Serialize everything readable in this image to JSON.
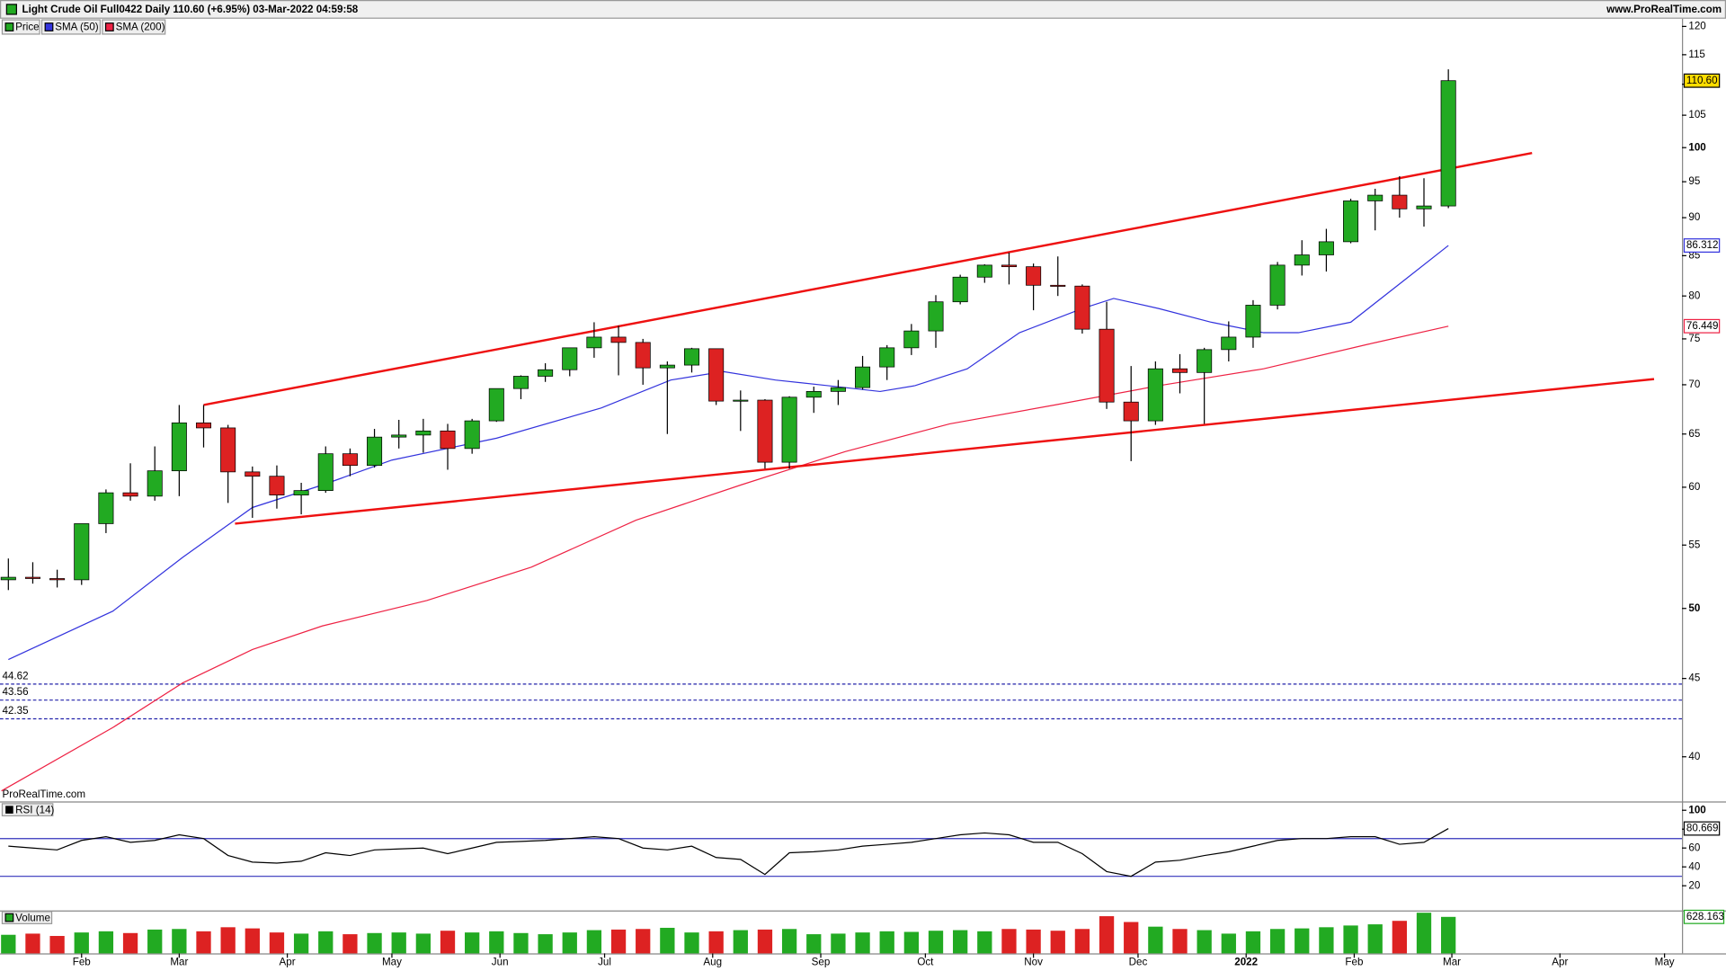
{
  "chart_data": [
    {
      "type": "candlestick",
      "title": "Light Crude Oil Full0422 Daily 110.60 (+6.95%) 03-Mar-2022 04:59:58",
      "source": "www.ProRealTime.com",
      "watermark": "ProRealTime.com",
      "price_name": "Price",
      "up_color": "#22aa22",
      "down_color": "#dd2222",
      "log_scale": true,
      "x": [
        10,
        17,
        24,
        31,
        38,
        45,
        52,
        59,
        66,
        73,
        80,
        87,
        94,
        101,
        108,
        115,
        122,
        129,
        136,
        143,
        150,
        157,
        164,
        171,
        178,
        185,
        192,
        199,
        206,
        213,
        220,
        227,
        234,
        241,
        248,
        255,
        262,
        269,
        276,
        283,
        290,
        297,
        304,
        311,
        318,
        325,
        332,
        339,
        346,
        353,
        360,
        367,
        374,
        381,
        388,
        395,
        402,
        409,
        416,
        423
      ],
      "open": [
        52.2,
        52.4,
        52.3,
        52.2,
        56.8,
        59.5,
        59.2,
        61.5,
        66.1,
        65.6,
        61.4,
        61.0,
        59.3,
        59.7,
        63.1,
        62.0,
        64.7,
        64.9,
        65.3,
        63.6,
        66.3,
        69.6,
        70.9,
        71.6,
        74.0,
        75.2,
        74.6,
        71.8,
        72.1,
        73.9,
        68.3,
        68.4,
        62.3,
        68.7,
        69.3,
        69.7,
        71.9,
        74.0,
        75.9,
        79.3,
        82.3,
        83.8,
        83.6,
        81.3,
        81.2,
        76.1,
        68.2,
        66.3,
        71.7,
        71.3,
        73.8,
        75.2,
        78.9,
        83.8,
        85.1,
        86.8,
        92.3,
        93.1,
        91.2,
        91.6
      ],
      "high": [
        53.9,
        53.6,
        53.0,
        56.8,
        59.8,
        62.2,
        63.8,
        67.9,
        67.9,
        65.9,
        61.9,
        62.0,
        60.4,
        63.8,
        63.6,
        65.5,
        66.4,
        66.5,
        66.0,
        66.5,
        69.6,
        71.0,
        72.3,
        74.0,
        76.9,
        76.5,
        75.0,
        72.5,
        74.0,
        73.9,
        69.4,
        68.5,
        68.8,
        69.8,
        70.5,
        73.1,
        74.3,
        76.7,
        80.1,
        82.6,
        83.9,
        85.4,
        84.0,
        84.9,
        81.4,
        79.3,
        72.0,
        72.5,
        73.3,
        74.0,
        77.0,
        79.5,
        84.2,
        87.0,
        88.5,
        92.6,
        94.0,
        95.8,
        95.5,
        112.5
      ],
      "low": [
        51.4,
        51.9,
        51.6,
        51.8,
        56.0,
        58.8,
        58.8,
        59.2,
        63.7,
        58.6,
        57.3,
        58.1,
        57.6,
        59.5,
        61.0,
        61.8,
        63.6,
        63.2,
        61.6,
        63.1,
        66.2,
        68.5,
        70.3,
        70.9,
        72.9,
        71.0,
        70.0,
        65.0,
        71.3,
        67.9,
        65.3,
        61.7,
        61.7,
        67.1,
        67.9,
        69.5,
        70.5,
        73.2,
        74.0,
        79.0,
        81.6,
        81.4,
        78.3,
        80.0,
        75.6,
        67.5,
        62.4,
        65.9,
        69.1,
        66.0,
        72.5,
        74.0,
        78.4,
        82.5,
        83.0,
        86.6,
        88.3,
        90.0,
        88.8,
        91.3
      ],
      "close": [
        52.4,
        52.3,
        52.2,
        56.8,
        59.5,
        59.2,
        61.5,
        66.1,
        65.6,
        61.4,
        61.0,
        59.3,
        59.7,
        63.1,
        62.0,
        64.7,
        64.9,
        65.3,
        63.6,
        66.3,
        69.6,
        70.9,
        71.6,
        74.0,
        75.2,
        74.6,
        71.8,
        72.1,
        73.9,
        68.3,
        68.4,
        62.3,
        68.7,
        69.3,
        69.7,
        71.9,
        74.0,
        75.9,
        79.3,
        82.3,
        83.8,
        83.6,
        81.3,
        81.2,
        76.1,
        68.2,
        66.3,
        71.7,
        71.3,
        73.8,
        75.2,
        78.9,
        83.8,
        85.1,
        86.8,
        92.3,
        93.1,
        91.2,
        91.6,
        110.6
      ],
      "price_tag": {
        "value": 110.6,
        "label": "110.60"
      },
      "series": [
        {
          "name": "SMA (50)",
          "color": "#3333dd",
          "x": [
            10,
            40,
            60,
            80,
            100,
            120,
            150,
            180,
            200,
            215,
            230,
            245,
            260,
            270,
            285,
            300,
            318,
            327,
            340,
            355,
            370,
            380,
            395,
            410,
            423
          ],
          "values": [
            46.3,
            49.8,
            54.0,
            58.2,
            60.2,
            62.5,
            64.6,
            67.6,
            70.5,
            71.4,
            70.5,
            69.9,
            69.3,
            69.9,
            71.7,
            75.7,
            78.5,
            79.7,
            78.5,
            76.9,
            75.7,
            75.7,
            76.9,
            81.8,
            86.312
          ]
        },
        {
          "name": "SMA (200)",
          "color": "#ee2244",
          "x": [
            8,
            40,
            60,
            80,
            100,
            130,
            160,
            190,
            220,
            250,
            280,
            310,
            340,
            370,
            400,
            423
          ],
          "values": [
            38.0,
            41.8,
            44.7,
            47.0,
            48.7,
            50.6,
            53.2,
            57.1,
            60.2,
            63.3,
            66.0,
            67.9,
            69.9,
            71.7,
            74.4,
            76.449
          ]
        }
      ],
      "trendlines": [
        {
          "color": "#ee1111",
          "x": [
            66,
            447
          ],
          "y": [
            67.9,
            99.2
          ]
        },
        {
          "color": "#ee1111",
          "x": [
            75,
            482
          ],
          "y": [
            56.8,
            70.6
          ]
        }
      ],
      "hlines": [
        {
          "value": 44.62,
          "label": "44.62"
        },
        {
          "value": 43.56,
          "label": "43.56"
        },
        {
          "value": 42.35,
          "label": "42.35"
        }
      ],
      "xlim": [
        7.6,
        490
      ],
      "xticks": [
        {
          "value": 31,
          "label": "Feb"
        },
        {
          "value": 59,
          "label": "Mar"
        },
        {
          "value": 90,
          "label": "Apr"
        },
        {
          "value": 120,
          "label": "May"
        },
        {
          "value": 151,
          "label": "Jun"
        },
        {
          "value": 181,
          "label": "Jul"
        },
        {
          "value": 212,
          "label": "Aug"
        },
        {
          "value": 243,
          "label": "Sep"
        },
        {
          "value": 273,
          "label": "Oct"
        },
        {
          "value": 304,
          "label": "Nov"
        },
        {
          "value": 334,
          "label": "Dec"
        },
        {
          "value": 365,
          "label": "2022"
        },
        {
          "value": 396,
          "label": "Feb"
        },
        {
          "value": 424,
          "label": "Mar"
        },
        {
          "value": 455,
          "label": "Apr"
        },
        {
          "value": 485,
          "label": "May"
        }
      ],
      "ylim": [
        37.4,
        121.4
      ],
      "yticks": [
        40,
        45,
        50,
        55,
        60,
        65,
        70,
        75,
        80,
        85,
        90,
        95,
        100,
        105,
        110,
        115,
        120
      ]
    },
    {
      "type": "line",
      "name": "RSI (14)",
      "color": "#000000",
      "level_color": "#3333bb",
      "levels": [
        70,
        30
      ],
      "x": [
        10,
        17,
        24,
        31,
        38,
        45,
        52,
        59,
        66,
        73,
        80,
        87,
        94,
        101,
        108,
        115,
        122,
        129,
        136,
        143,
        150,
        157,
        164,
        171,
        178,
        185,
        192,
        199,
        206,
        213,
        220,
        227,
        234,
        241,
        248,
        255,
        262,
        269,
        276,
        283,
        290,
        297,
        304,
        311,
        318,
        325,
        332,
        339,
        346,
        353,
        360,
        367,
        374,
        381,
        388,
        395,
        402,
        409,
        416,
        423
      ],
      "values": [
        62,
        60,
        58,
        68,
        72,
        66,
        68,
        74,
        70,
        52,
        45,
        44,
        46,
        55,
        52,
        58,
        59,
        60,
        54,
        60,
        66,
        67,
        68,
        70,
        72,
        70,
        60,
        58,
        62,
        50,
        48,
        32,
        55,
        56,
        58,
        62,
        64,
        66,
        70,
        74,
        76,
        74,
        66,
        66,
        54,
        35,
        30,
        45,
        47,
        52,
        56,
        62,
        68,
        70,
        70,
        72,
        72,
        64,
        66,
        80.669
      ],
      "ylim": [
        -5,
        107
      ],
      "yticks": [
        20,
        40,
        60,
        80,
        100
      ]
    },
    {
      "type": "bar",
      "name": "Volume",
      "x": [
        10,
        17,
        24,
        31,
        38,
        45,
        52,
        59,
        66,
        73,
        80,
        87,
        94,
        101,
        108,
        115,
        122,
        129,
        136,
        143,
        150,
        157,
        164,
        171,
        178,
        185,
        192,
        199,
        206,
        213,
        220,
        227,
        234,
        241,
        248,
        255,
        262,
        269,
        276,
        283,
        290,
        297,
        304,
        311,
        318,
        325,
        332,
        339,
        346,
        353,
        360,
        367,
        374,
        381,
        388,
        395,
        402,
        409,
        416,
        423
      ],
      "values": [
        320,
        340,
        300,
        360,
        380,
        350,
        410,
        420,
        380,
        450,
        430,
        360,
        340,
        380,
        330,
        350,
        360,
        340,
        390,
        360,
        380,
        350,
        330,
        360,
        400,
        410,
        420,
        440,
        360,
        380,
        400,
        410,
        420,
        330,
        340,
        360,
        380,
        370,
        390,
        400,
        380,
        420,
        410,
        390,
        420,
        640,
        540,
        460,
        420,
        400,
        340,
        380,
        420,
        430,
        450,
        480,
        500,
        560,
        700,
        628.163
      ],
      "ylim": [
        0,
        720
      ]
    }
  ]
}
